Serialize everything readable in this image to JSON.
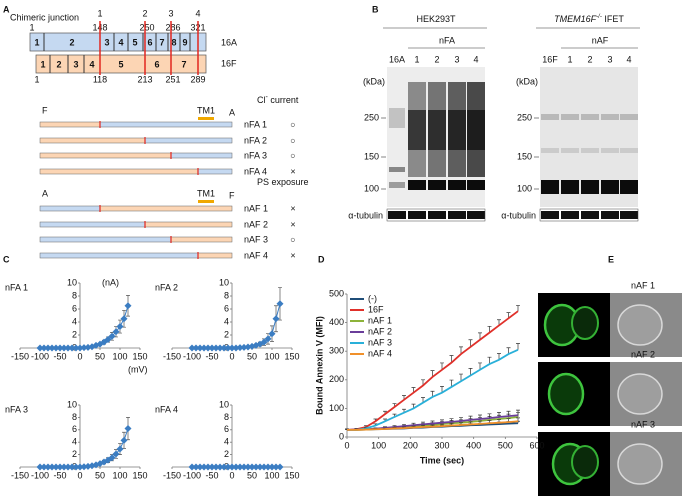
{
  "panel_a": {
    "label": "A",
    "junction_label": "Chimeric junction",
    "junctions": [
      "1",
      "2",
      "3",
      "4"
    ],
    "proteins": [
      {
        "name": "16A",
        "domains": [
          "1",
          "2",
          "3",
          "4",
          "5",
          "6",
          "7",
          "8",
          "9"
        ],
        "positions": [
          1,
          148,
          250,
          286,
          321
        ]
      },
      {
        "name": "16F",
        "domains": [
          "1",
          "2",
          "3",
          "4",
          "5",
          "6",
          "7"
        ],
        "positions": [
          1,
          118,
          213,
          251,
          289
        ]
      }
    ],
    "cl_section": {
      "title": "Cl",
      "title_sup": "-",
      "title_rest": " current",
      "n_term": "F",
      "c_term": "A",
      "tm": "TM1",
      "constructs": [
        {
          "name": "nFA 1",
          "result": "○"
        },
        {
          "name": "nFA 2",
          "result": "○"
        },
        {
          "name": "nFA 3",
          "result": "○"
        },
        {
          "name": "nFA 4",
          "result": "×"
        }
      ]
    },
    "ps_section": {
      "title": "PS exposure",
      "n_term": "A",
      "c_term": "F",
      "tm": "TM1",
      "constructs": [
        {
          "name": "nAF 1",
          "result": "×"
        },
        {
          "name": "nAF 2",
          "result": "×"
        },
        {
          "name": "nAF 3",
          "result": "○"
        },
        {
          "name": "nAF 4",
          "result": "×"
        }
      ]
    }
  },
  "panel_b": {
    "label": "B",
    "blots": [
      {
        "title": "HEK293T",
        "group": "nFA",
        "lanes": [
          "16A",
          "1",
          "2",
          "3",
          "4"
        ],
        "unit": "(kDa)",
        "markers": [
          250,
          150,
          100
        ],
        "loading": "α-tubulin"
      },
      {
        "title_gene": "TMEM16F",
        "title_sup": "-/-",
        "title_cells": " IFET",
        "group": "nAF",
        "lanes": [
          "16F",
          "1",
          "2",
          "3",
          "4"
        ],
        "unit": "(kDa)",
        "markers": [
          250,
          150,
          100
        ],
        "loading": "α-tubulin"
      }
    ]
  },
  "panel_c": {
    "label": "C"
  },
  "panel_d": {
    "label": "D"
  },
  "panel_e": {
    "label": "E",
    "images": [
      "nAF 1",
      "nAF 2",
      "nAF 3"
    ]
  },
  "chart_data": [
    {
      "type": "line",
      "title": "nFA 1",
      "x_label": "(mV)",
      "y_label": "(nA)",
      "marker": "diamond",
      "error_bars": "both",
      "x": [
        -100,
        -90,
        -80,
        -70,
        -60,
        -50,
        -40,
        -30,
        -20,
        -10,
        0,
        10,
        20,
        30,
        40,
        50,
        60,
        70,
        80,
        90,
        100,
        110,
        120
      ],
      "series": [
        {
          "color": "#3b7dc2",
          "values": [
            0,
            0,
            0,
            0,
            0,
            0,
            0,
            0,
            0,
            0,
            0,
            0.05,
            0.1,
            0.2,
            0.4,
            0.6,
            0.9,
            1.3,
            1.8,
            2.5,
            3.3,
            4.5,
            6.5
          ],
          "errors": [
            0,
            0,
            0,
            0,
            0,
            0,
            0,
            0,
            0,
            0,
            0,
            0,
            0.05,
            0.1,
            0.15,
            0.2,
            0.3,
            0.4,
            0.6,
            0.8,
            1,
            1.3,
            1.6
          ]
        }
      ],
      "xlim": [
        -150,
        150
      ],
      "xticks": [
        -150,
        -100,
        -50,
        0,
        50,
        100,
        150
      ],
      "ylim": [
        0,
        10
      ],
      "yticks": [
        0,
        2,
        4,
        6,
        8,
        10
      ]
    },
    {
      "type": "line",
      "title": "nFA 2",
      "marker": "diamond",
      "error_bars": "both",
      "x": [
        -100,
        -90,
        -80,
        -70,
        -60,
        -50,
        -40,
        -30,
        -20,
        -10,
        0,
        10,
        20,
        30,
        40,
        50,
        60,
        70,
        80,
        90,
        100,
        110,
        120
      ],
      "series": [
        {
          "color": "#3b7dc2",
          "values": [
            0,
            0,
            0,
            0,
            0,
            0,
            0,
            0,
            0,
            0,
            0,
            0,
            0.05,
            0.1,
            0.15,
            0.25,
            0.4,
            0.6,
            0.9,
            1.4,
            2.2,
            4.5,
            6.8
          ],
          "errors": [
            0,
            0,
            0,
            0,
            0,
            0,
            0,
            0,
            0,
            0,
            0,
            0,
            0,
            0.05,
            0.1,
            0.15,
            0.2,
            0.3,
            0.5,
            0.8,
            1.2,
            2,
            2.5
          ]
        }
      ],
      "xlim": [
        -150,
        150
      ],
      "xticks": [
        -150,
        -100,
        -50,
        0,
        50,
        100,
        150
      ],
      "ylim": [
        0,
        10
      ],
      "yticks": [
        0,
        2,
        4,
        6,
        8,
        10
      ]
    },
    {
      "type": "line",
      "title": "nFA 3",
      "marker": "diamond",
      "error_bars": "both",
      "x": [
        -100,
        -90,
        -80,
        -70,
        -60,
        -50,
        -40,
        -30,
        -20,
        -10,
        0,
        10,
        20,
        30,
        40,
        50,
        60,
        70,
        80,
        90,
        100,
        110,
        120
      ],
      "series": [
        {
          "color": "#3b7dc2",
          "values": [
            0,
            0,
            0,
            0,
            0,
            0,
            0,
            0,
            0,
            0,
            0,
            0.05,
            0.1,
            0.2,
            0.35,
            0.55,
            0.8,
            1.1,
            1.5,
            2.1,
            2.9,
            4.3,
            6.2
          ],
          "errors": [
            0,
            0,
            0,
            0,
            0,
            0,
            0,
            0,
            0,
            0,
            0,
            0,
            0,
            0.05,
            0.1,
            0.2,
            0.3,
            0.4,
            0.5,
            0.7,
            0.9,
            1.3,
            1.8
          ]
        }
      ],
      "xlim": [
        -150,
        150
      ],
      "xticks": [
        -150,
        -100,
        -50,
        0,
        50,
        100,
        150
      ],
      "ylim": [
        0,
        10
      ],
      "yticks": [
        0,
        2,
        4,
        6,
        8,
        10
      ]
    },
    {
      "type": "line",
      "title": "nFA 4",
      "marker": "diamond",
      "x": [
        -100,
        -90,
        -80,
        -70,
        -60,
        -50,
        -40,
        -30,
        -20,
        -10,
        0,
        10,
        20,
        30,
        40,
        50,
        60,
        70,
        80,
        90,
        100,
        110,
        120
      ],
      "series": [
        {
          "color": "#3b7dc2",
          "values": [
            0,
            0,
            0,
            0,
            0,
            0,
            0,
            0,
            0,
            0,
            0,
            0,
            0,
            0,
            0,
            0,
            0,
            0,
            0,
            0,
            0,
            0,
            0
          ]
        }
      ],
      "xlim": [
        -150,
        150
      ],
      "xticks": [
        -150,
        -100,
        -50,
        0,
        50,
        100,
        150
      ],
      "ylim": [
        0,
        10
      ],
      "yticks": [
        0,
        2,
        4,
        6,
        8,
        10
      ]
    },
    {
      "type": "line",
      "x_label": "Time (sec)",
      "y_label": "Bound Annexin V (MFI)",
      "legend": "upper left",
      "error_bars": "upper",
      "x": [
        0,
        30,
        60,
        90,
        120,
        150,
        180,
        210,
        240,
        270,
        300,
        330,
        360,
        390,
        420,
        450,
        480,
        510,
        540
      ],
      "series": [
        {
          "name": "(-)",
          "color": "#1f4e79",
          "values": [
            25,
            25,
            26,
            27,
            28,
            29,
            30,
            32,
            33,
            35,
            36,
            38,
            39,
            41,
            42,
            44,
            45,
            47,
            48
          ],
          "errors": [
            2,
            2,
            2,
            2,
            3,
            3,
            3,
            4,
            4,
            4,
            5,
            5,
            5,
            6,
            6,
            6,
            7,
            7,
            7
          ]
        },
        {
          "name": "16F",
          "color": "#e0302a",
          "values": [
            25,
            27,
            35,
            55,
            80,
            105,
            130,
            155,
            180,
            210,
            235,
            260,
            290,
            315,
            340,
            365,
            390,
            415,
            440
          ],
          "errors": [
            3,
            3,
            5,
            8,
            10,
            12,
            15,
            18,
            20,
            22,
            24,
            25,
            25,
            25,
            24,
            22,
            20,
            20,
            20
          ]
        },
        {
          "name": "nAF 1",
          "color": "#8db33a",
          "values": [
            25,
            25,
            26,
            28,
            30,
            32,
            35,
            37,
            40,
            42,
            45,
            48,
            50,
            53,
            56,
            60,
            63,
            66,
            70
          ],
          "errors": [
            2,
            2,
            2,
            3,
            3,
            4,
            5,
            6,
            7,
            8,
            9,
            10,
            10,
            11,
            12,
            12,
            13,
            14,
            15
          ]
        },
        {
          "name": "nAF 2",
          "color": "#6a3d9a",
          "values": [
            25,
            26,
            27,
            29,
            32,
            35,
            38,
            41,
            44,
            47,
            50,
            53,
            56,
            60,
            63,
            66,
            70,
            73,
            76
          ],
          "errors": [
            2,
            2,
            3,
            3,
            4,
            5,
            6,
            7,
            8,
            9,
            10,
            11,
            12,
            13,
            14,
            15,
            16,
            17,
            18
          ]
        },
        {
          "name": "nAF 3",
          "color": "#29b0d9",
          "values": [
            25,
            25,
            30,
            40,
            55,
            70,
            85,
            100,
            120,
            140,
            155,
            175,
            195,
            215,
            235,
            255,
            270,
            290,
            305
          ],
          "errors": [
            3,
            3,
            4,
            6,
            8,
            10,
            12,
            15,
            18,
            20,
            22,
            24,
            25,
            25,
            24,
            24,
            22,
            22,
            22
          ]
        },
        {
          "name": "nAF 4",
          "color": "#f0902a",
          "values": [
            25,
            25,
            26,
            27,
            28,
            30,
            31,
            33,
            35,
            36,
            38,
            40,
            42,
            44,
            46,
            48,
            50,
            52,
            55
          ],
          "errors": [
            2,
            2,
            2,
            3,
            3,
            4,
            4,
            5,
            6,
            6,
            7,
            8,
            8,
            9,
            10,
            10,
            11,
            12,
            12
          ]
        }
      ],
      "xlim": [
        0,
        600
      ],
      "xticks": [
        0,
        100,
        200,
        300,
        400,
        500,
        600
      ],
      "ylim": [
        0,
        500
      ],
      "yticks": [
        0,
        100,
        200,
        300,
        400,
        500
      ]
    }
  ]
}
